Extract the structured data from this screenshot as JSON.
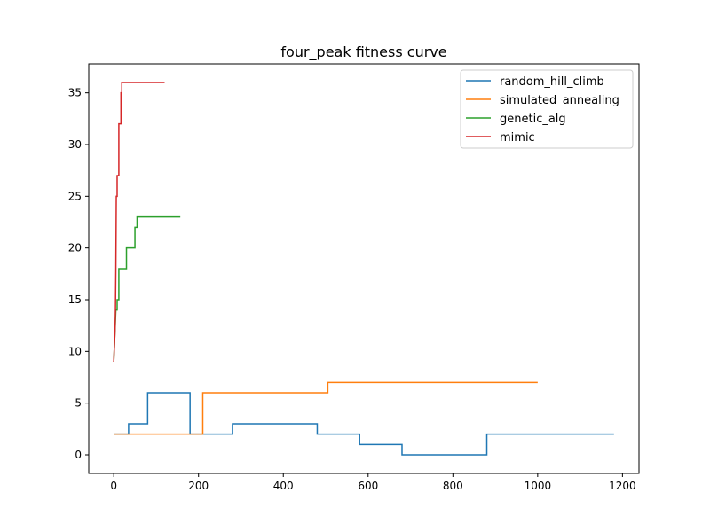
{
  "chart_data": {
    "type": "line",
    "title": "four_peak fitness curve",
    "xlabel": "",
    "ylabel": "",
    "xlim": [
      -59,
      1239
    ],
    "ylim": [
      -1.8,
      37.8
    ],
    "xticks": [
      0,
      200,
      400,
      600,
      800,
      1000,
      1200
    ],
    "yticks": [
      0,
      5,
      10,
      15,
      20,
      25,
      30,
      35
    ],
    "grid": false,
    "legend_position": "top-right",
    "series": [
      {
        "name": "random_hill_climb",
        "color": "#1f77b4",
        "step": true,
        "points": [
          [
            0,
            2
          ],
          [
            35,
            2
          ],
          [
            35,
            3
          ],
          [
            80,
            3
          ],
          [
            80,
            6
          ],
          [
            180,
            6
          ],
          [
            180,
            2
          ],
          [
            280,
            2
          ],
          [
            280,
            3
          ],
          [
            480,
            3
          ],
          [
            480,
            2
          ],
          [
            580,
            2
          ],
          [
            580,
            1
          ],
          [
            680,
            1
          ],
          [
            680,
            0
          ],
          [
            880,
            0
          ],
          [
            880,
            2
          ],
          [
            1180,
            2
          ]
        ]
      },
      {
        "name": "simulated_annealing",
        "color": "#ff7f0e",
        "step": true,
        "points": [
          [
            0,
            2
          ],
          [
            210,
            2
          ],
          [
            210,
            6
          ],
          [
            505,
            6
          ],
          [
            505,
            7
          ],
          [
            1000,
            7
          ]
        ]
      },
      {
        "name": "genetic_alg",
        "color": "#2ca02c",
        "step": true,
        "points": [
          [
            0,
            9
          ],
          [
            1,
            10
          ],
          [
            2,
            11
          ],
          [
            3,
            12
          ],
          [
            5,
            14
          ],
          [
            8,
            14
          ],
          [
            8,
            15
          ],
          [
            12,
            15
          ],
          [
            12,
            18
          ],
          [
            30,
            18
          ],
          [
            30,
            20
          ],
          [
            50,
            20
          ],
          [
            50,
            22
          ],
          [
            55,
            22
          ],
          [
            55,
            23
          ],
          [
            157,
            23
          ]
        ]
      },
      {
        "name": "mimic",
        "color": "#d62728",
        "step": true,
        "points": [
          [
            0,
            9
          ],
          [
            1,
            10
          ],
          [
            2,
            11
          ],
          [
            3,
            12
          ],
          [
            4,
            14
          ],
          [
            5,
            18
          ],
          [
            6,
            25
          ],
          [
            8,
            25
          ],
          [
            8,
            27
          ],
          [
            12,
            27
          ],
          [
            12,
            32
          ],
          [
            17,
            32
          ],
          [
            17,
            35
          ],
          [
            19,
            35
          ],
          [
            19,
            36
          ],
          [
            120,
            36
          ]
        ]
      }
    ]
  }
}
